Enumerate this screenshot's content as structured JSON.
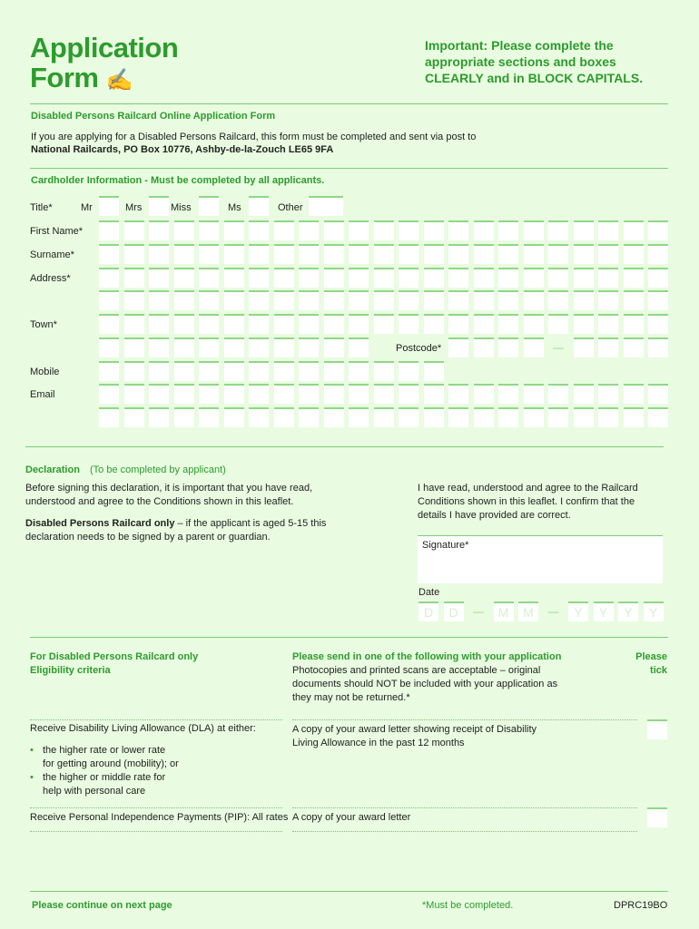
{
  "header": {
    "title_line1": "Application",
    "title_line2": "Form",
    "title_icon": "writing-hand-icon",
    "important_line1": "Important: Please complete the",
    "important_line2": "appropriate sections and boxes",
    "important_line3": "CLEARLY and in BLOCK CAPITALS."
  },
  "intro": {
    "heading": "Disabled Persons Railcard Online Application Form",
    "text": "If you are applying for a Disabled Persons Railcard, this form must be completed and sent via post to",
    "address": "National Railcards, PO Box 10776, Ashby-de-la-Zouch LE65 9FA"
  },
  "cardholder": {
    "heading": "Cardholder Information - Must be completed by all applicants.",
    "title_label": "Title*",
    "title_options": [
      "Mr",
      "Mrs",
      "Miss",
      "Ms",
      "Other"
    ],
    "first_name_label": "First Name*",
    "surname_label": "Surname*",
    "address_label": "Address*",
    "town_label": "Town*",
    "postcode_label": "Postcode*",
    "postcode_separator": "—",
    "mobile_label": "Mobile",
    "email_label": "Email"
  },
  "declaration": {
    "heading": "Declaration",
    "subheading": "(To be completed by applicant)",
    "left_text": "Before signing this declaration, it is important that you have read, understood and agree to the Conditions shown in this leaflet.",
    "note_bold": "Disabled Persons Railcard only",
    "note_text": " – if the applicant is aged 5-15 this declaration needs to be signed by a parent or guardian.",
    "right_text": "I have read, understood and agree to the Railcard Conditions shown in this leaflet. I confirm that the details I have provided are correct.",
    "signature_label": "Signature*",
    "date_label": "Date",
    "date_placeholders": [
      "D",
      "D",
      "—",
      "M",
      "M",
      "—",
      "Y",
      "Y",
      "Y",
      "Y"
    ]
  },
  "eligibility": {
    "heading_line1": "For Disabled Persons Railcard only",
    "heading_line2": "Eligibility criteria",
    "send_heading": "Please send in one of the following with your application",
    "send_text": "Photocopies and printed scans are acceptable – original documents should NOT be included with your application as they may not be returned.*",
    "tick_line1": "Please",
    "tick_line2": "tick",
    "rows": [
      {
        "criteria": "Receive Disability Living Allowance (DLA) at either:",
        "bullets": [
          "the higher rate or lower rate for getting around (mobility); or",
          "the higher or middle rate for help with personal care"
        ],
        "evidence": "A copy of your award letter showing receipt of Disability Living Allowance in the past 12 months"
      },
      {
        "criteria": "Receive Personal Independence Payments (PIP): All rates",
        "bullets": [],
        "evidence": "A copy of your award letter"
      }
    ]
  },
  "footer": {
    "continue": "Please continue on next page",
    "required_note": "*Must be completed.",
    "code": "DPRC19BO"
  },
  "colors": {
    "background": "#e9fce1",
    "accent": "#2c9c2c",
    "box_top": "#8ed884"
  }
}
